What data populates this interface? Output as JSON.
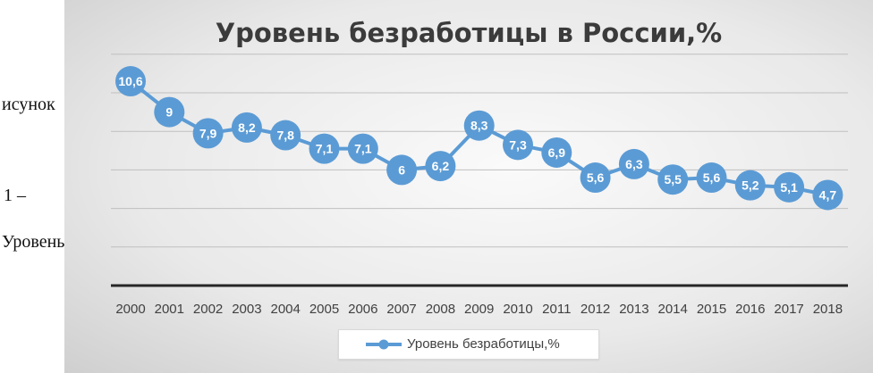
{
  "side_text": [
    "исунок",
    "1 –",
    "Уровень"
  ],
  "chart_data": {
    "type": "line",
    "title": "Уровень безработицы в России,%",
    "categories": [
      "2000",
      "2001",
      "2002",
      "2003",
      "2004",
      "2005",
      "2006",
      "2007",
      "2008",
      "2009",
      "2010",
      "2011",
      "2012",
      "2013",
      "2014",
      "2015",
      "2016",
      "2017",
      "2018"
    ],
    "series": [
      {
        "name": "Уровень безработицы,%",
        "values": [
          10.6,
          9,
          7.9,
          8.2,
          7.8,
          7.1,
          7.1,
          6,
          6.2,
          8.3,
          7.3,
          6.9,
          5.6,
          6.3,
          5.5,
          5.6,
          5.2,
          5.1,
          4.7
        ],
        "labels": [
          "10,6",
          "9",
          "7,9",
          "8,2",
          "7,8",
          "7,1",
          "7,1",
          "6",
          "6,2",
          "8,3",
          "7,3",
          "6,9",
          "5,6",
          "6,3",
          "5,5",
          "5,6",
          "5,2",
          "5,1",
          "4,7"
        ]
      }
    ],
    "ylim": [
      0,
      12
    ],
    "grid": true,
    "legend": "bottom",
    "colors": {
      "line": "#5b9bd5",
      "marker": "#5b9bd5",
      "label_text": "#ffffff",
      "grid": "#bfbfbf",
      "axis": "#262626",
      "title": "#3b3b3b"
    }
  }
}
